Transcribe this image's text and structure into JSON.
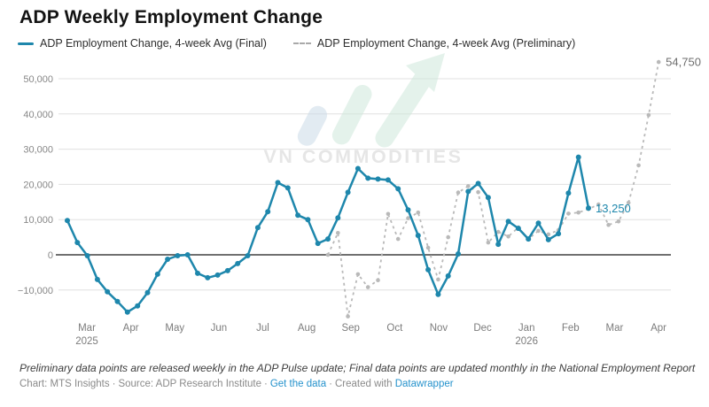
{
  "title": "ADP Weekly Employment Change",
  "legend": [
    {
      "label": "ADP Employment Change, 4-week Avg (Final)",
      "color": "#1e87ac",
      "style": "solid"
    },
    {
      "label": "ADP Employment Change, 4-week Avg (Preliminary)",
      "color": "#b9b9b9",
      "style": "dashed"
    }
  ],
  "watermark": {
    "text": "VN COMMODITIES",
    "logo": "trend-arrow-up-icon",
    "text_color": "#d3d3d3",
    "logo_blue": "#ccdbe9",
    "logo_green": "#cfe9db"
  },
  "chart_data": {
    "type": "line",
    "x_unit": "weeks",
    "title": "ADP Weekly Employment Change",
    "grid": "horizontal",
    "legend_position": "top-left",
    "y_axis": {
      "ticks": [
        {
          "v": -10000,
          "label": "−10,000"
        },
        {
          "v": 0,
          "label": "0"
        },
        {
          "v": 10000,
          "label": "10,000"
        },
        {
          "v": 20000,
          "label": "20,000"
        },
        {
          "v": 30000,
          "label": "30,000"
        },
        {
          "v": 40000,
          "label": "40,000"
        },
        {
          "v": 50000,
          "label": "50,000"
        }
      ],
      "range": [
        -18000,
        55000
      ]
    },
    "x_axis": {
      "months": [
        {
          "label": "Mar",
          "sub": "2025"
        },
        {
          "label": "Apr"
        },
        {
          "label": "May"
        },
        {
          "label": "Jun"
        },
        {
          "label": "Jul"
        },
        {
          "label": "Aug"
        },
        {
          "label": "Sep"
        },
        {
          "label": "Oct"
        },
        {
          "label": "Nov"
        },
        {
          "label": "Dec"
        },
        {
          "label": "Jan",
          "sub": "2026"
        },
        {
          "label": "Feb"
        },
        {
          "label": "Mar"
        },
        {
          "label": "Apr"
        }
      ]
    },
    "series": [
      {
        "name": "ADP Employment Change, 4-week Avg (Final)",
        "color": "#1e87ac",
        "style": "solid",
        "start_week": 0,
        "values": [
          9750,
          3500,
          -250,
          -7000,
          -10500,
          -13250,
          -16250,
          -14500,
          -10750,
          -5500,
          -1250,
          -250,
          0,
          -5250,
          -6500,
          -5750,
          -4500,
          -2500,
          -250,
          7750,
          12250,
          20500,
          19000,
          11250,
          10000,
          3250,
          4500,
          10500,
          17750,
          24500,
          21750,
          21500,
          21250,
          18750,
          12750,
          5500,
          -4250,
          -11250,
          -6000,
          250,
          18000,
          20250,
          16250,
          3000,
          9500,
          7500,
          4500,
          9000,
          4300,
          6000,
          17500,
          27750,
          13250
        ]
      },
      {
        "name": "ADP Employment Change, 4-week Avg (Preliminary)",
        "color": "#b9b9b9",
        "style": "dashed",
        "start_week": 26,
        "values": [
          0,
          6200,
          -17500,
          -5500,
          -9200,
          -7200,
          11600,
          4500,
          10400,
          12000,
          2000,
          -7000,
          5000,
          17700,
          19500,
          17800,
          3500,
          6500,
          5200,
          7800,
          4500,
          6800,
          5800,
          7000,
          11700,
          12000,
          13000,
          14300,
          8500,
          9500,
          14800,
          25400,
          39700,
          54750
        ]
      }
    ],
    "annotations": [
      {
        "text": "13,250",
        "week": 52,
        "value": 13250,
        "color": "#1e87ac",
        "series": "final"
      },
      {
        "text": "54,750",
        "week": 59,
        "value": 54750,
        "color": "#6e6e6e",
        "series": "preliminary"
      }
    ]
  },
  "note": "Preliminary data points are released weekly in the ADP Pulse update; Final data points are updated monthly in the National Employment Report",
  "footer": {
    "chart_credit": "Chart: MTS Insights",
    "source_credit": "Source: ADP Research Institute",
    "data_link": "Get the data",
    "created_with": "Created with",
    "tool_link": "Datawrapper",
    "separator": "·"
  }
}
